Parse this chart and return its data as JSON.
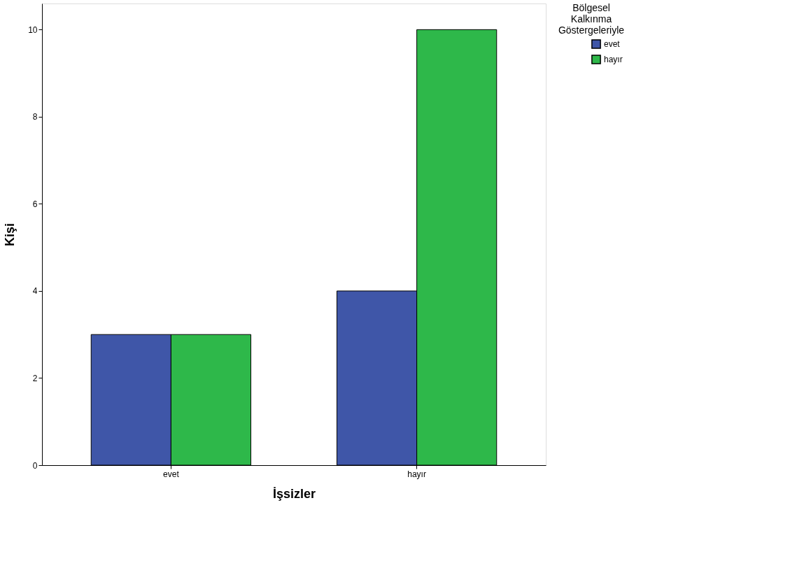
{
  "chart_data": {
    "type": "bar",
    "xlabel": "İşsizler",
    "ylabel": "Kişi",
    "legend_title": "Bölgesel Kalkınma Göstergeleriyle",
    "categories": [
      "evet",
      "hayır"
    ],
    "series": [
      {
        "name": "evet",
        "color": "#3f56a8",
        "values": [
          3,
          4
        ]
      },
      {
        "name": "hayır",
        "color": "#2eb84a",
        "values": [
          3,
          10
        ]
      }
    ],
    "ylim": [
      0,
      10.6
    ],
    "yticks": [
      0,
      2,
      4,
      6,
      8,
      10
    ],
    "grid": false,
    "legend": "top right"
  }
}
